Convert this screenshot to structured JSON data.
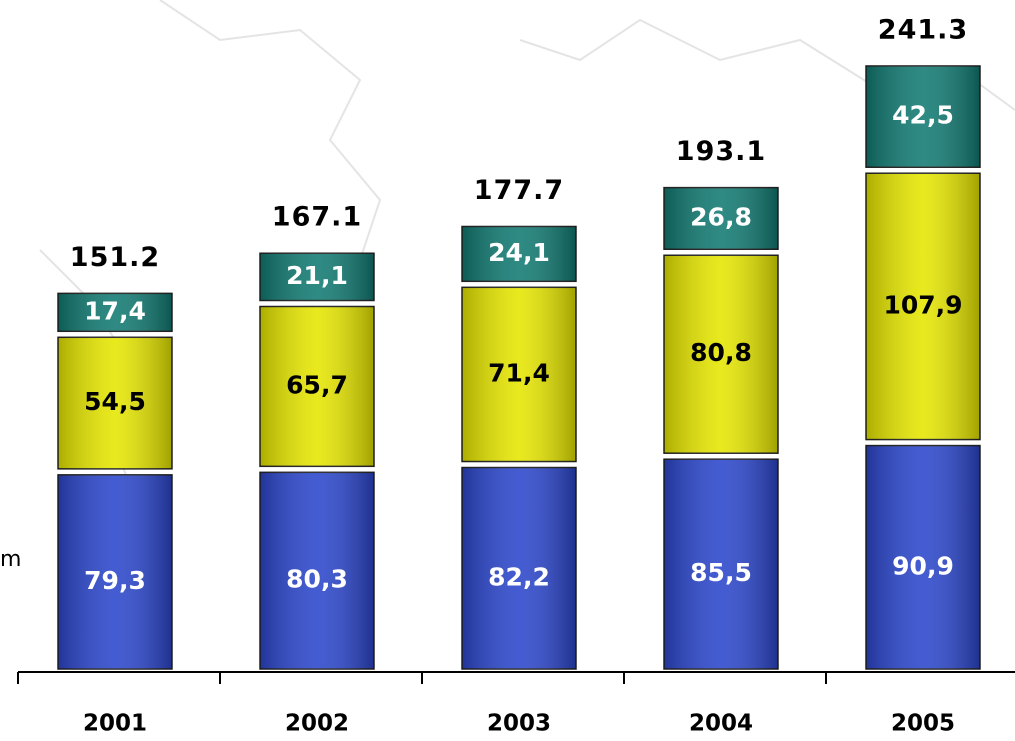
{
  "chart_data": {
    "type": "stacked_bar",
    "categories": [
      "2001",
      "2002",
      "2003",
      "2004",
      "2005"
    ],
    "series": [
      {
        "color": "#2b46cc",
        "label_color": "#ffffff",
        "values": [
          79.3,
          80.3,
          82.2,
          85.5,
          90.9
        ],
        "value_labels": [
          "79,3",
          "80,3",
          "82,2",
          "85,5",
          "90,9"
        ]
      },
      {
        "color": "#e6e600",
        "label_color": "#000000",
        "values": [
          54.5,
          65.7,
          71.4,
          80.8,
          107.9
        ],
        "value_labels": [
          "54,5",
          "65,7",
          "71,4",
          "80,8",
          "107,9"
        ]
      },
      {
        "color": "#117a72",
        "label_color": "#ffffff",
        "values": [
          17.4,
          21.1,
          24.1,
          26.8,
          42.5
        ],
        "value_labels": [
          "17,4",
          "21,1",
          "24,1",
          "26,8",
          "42,5"
        ]
      }
    ],
    "totals": [
      151.2,
      167.1,
      177.7,
      193.1,
      241.3
    ],
    "annotation": "m"
  }
}
